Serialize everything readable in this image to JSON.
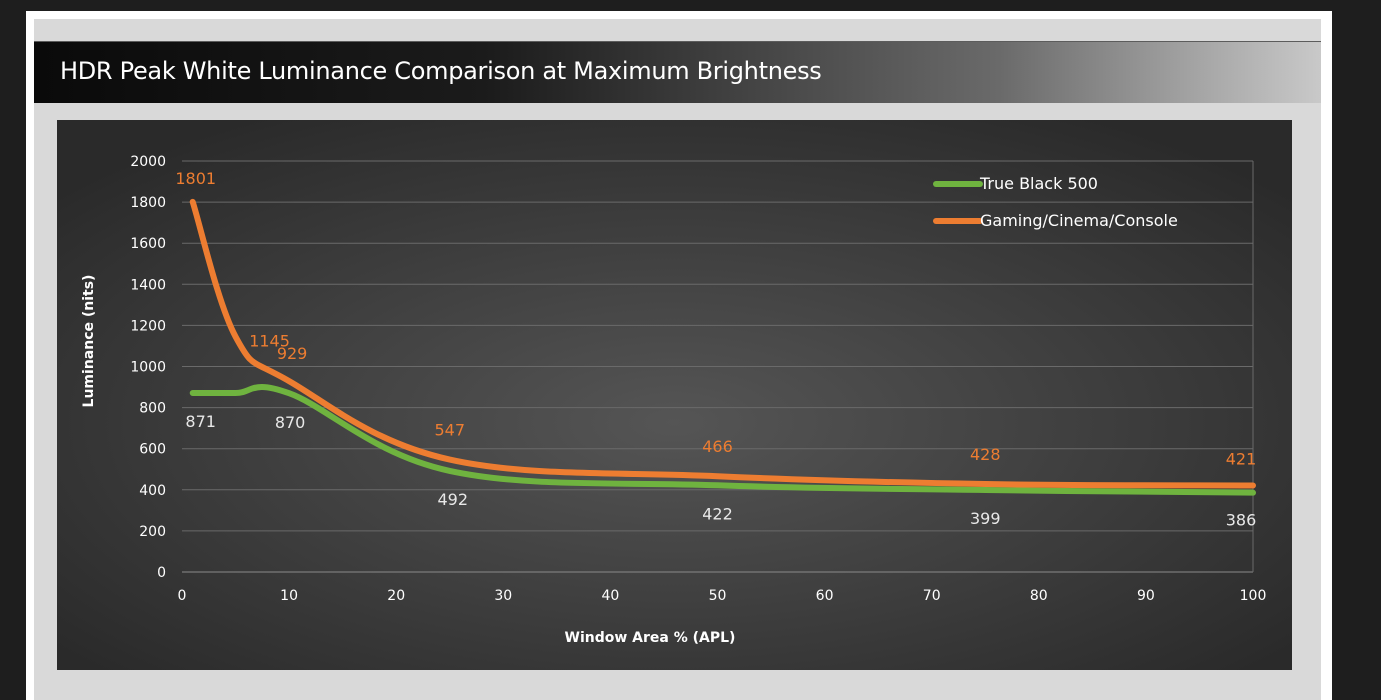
{
  "title": "HDR Peak White Luminance Comparison at Maximum Brightness",
  "colors": {
    "green": "#6fb33f",
    "orange": "#ed7d31",
    "green_label": "#e8e8e8",
    "orange_label": "#ed7d31"
  },
  "chart_data": {
    "type": "line",
    "title": "HDR Peak White Luminance Comparison at Maximum Brightness",
    "xlabel": "Window Area % (APL)",
    "ylabel": "Luminance (nits)",
    "xlim": [
      0,
      100
    ],
    "ylim": [
      0,
      2000
    ],
    "x_ticks": [
      "0",
      "10",
      "20",
      "30",
      "40",
      "50",
      "60",
      "70",
      "80",
      "90",
      "100"
    ],
    "y_ticks": [
      "0",
      "200",
      "400",
      "600",
      "800",
      "1000",
      "1200",
      "1400",
      "1600",
      "1800",
      "2000"
    ],
    "grid": true,
    "legend_position": "top-right",
    "series": [
      {
        "name": "True Black 500",
        "x": [
          1,
          5,
          10,
          25,
          50,
          75,
          100
        ],
        "y": [
          871,
          871,
          870,
          492,
          422,
          399,
          386
        ],
        "labeled_points": [
          {
            "x": 1,
            "y": 871,
            "label": "871"
          },
          {
            "x": 10,
            "y": 870,
            "label": "870"
          },
          {
            "x": 25,
            "y": 492,
            "label": "492"
          },
          {
            "x": 50,
            "y": 422,
            "label": "422"
          },
          {
            "x": 75,
            "y": 399,
            "label": "399"
          },
          {
            "x": 100,
            "y": 386,
            "label": "386"
          }
        ]
      },
      {
        "name": "Gaming/Cinema/Console",
        "x": [
          1,
          5,
          10,
          25,
          50,
          75,
          100
        ],
        "y": [
          1801,
          1145,
          929,
          547,
          466,
          428,
          421
        ],
        "labeled_points": [
          {
            "x": 1,
            "y": 1801,
            "label": "1801"
          },
          {
            "x": 5,
            "y": 1145,
            "label": "1145"
          },
          {
            "x": 10,
            "y": 929,
            "label": "929"
          },
          {
            "x": 25,
            "y": 547,
            "label": "547"
          },
          {
            "x": 50,
            "y": 466,
            "label": "466"
          },
          {
            "x": 75,
            "y": 428,
            "label": "428"
          },
          {
            "x": 100,
            "y": 421,
            "label": "421"
          }
        ]
      }
    ]
  }
}
